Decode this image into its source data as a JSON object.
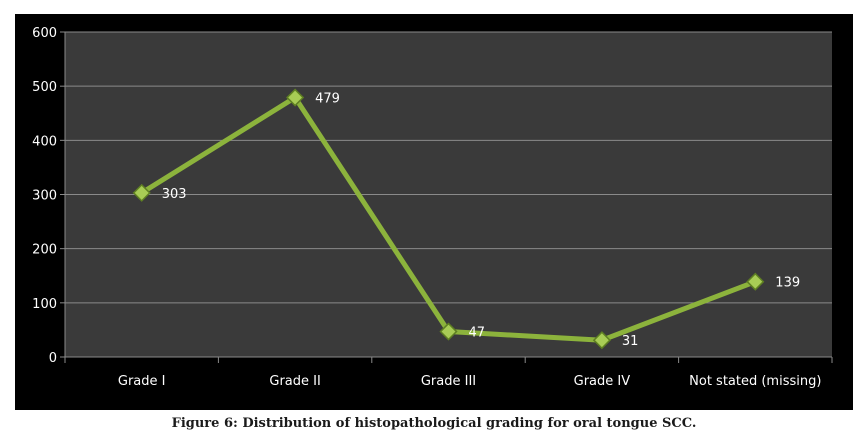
{
  "caption": "Figure 6: Distribution of histopathological grading for oral tongue SCC.",
  "chart_data": {
    "type": "line",
    "title": "",
    "xlabel": "",
    "ylabel": "",
    "categories": [
      "Grade I",
      "Grade II",
      "Grade III",
      "Grade IV",
      "Not stated (missing)"
    ],
    "series": [
      {
        "values": [
          303,
          479,
          47,
          31,
          139
        ],
        "color": "#8cb33c"
      }
    ],
    "data_labels": [
      "303",
      "479",
      "47",
      "31",
      "139"
    ],
    "ylim": [
      0,
      600
    ],
    "yticks": [
      0,
      100,
      200,
      300,
      400,
      500,
      600
    ],
    "grid": true,
    "legend": "none",
    "colors": {
      "background": "#000000",
      "plot_area": "#3a3a3a",
      "gridline": "#8a8a8a",
      "text": "#ffffff",
      "marker": "#a8cc55"
    }
  }
}
